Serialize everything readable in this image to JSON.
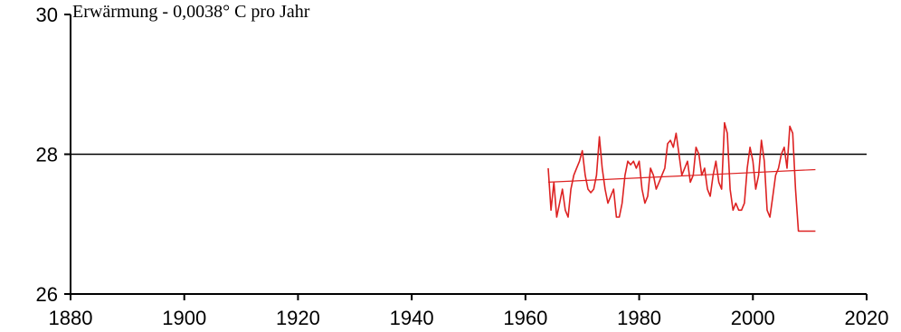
{
  "chart_data": {
    "type": "line",
    "title": "Erwärmung - 0,0038° C pro Jahr",
    "xlabel": "",
    "ylabel": "",
    "xlim": [
      1880,
      2020
    ],
    "ylim": [
      26,
      30
    ],
    "x_ticks": [
      1880,
      1900,
      1920,
      1940,
      1960,
      1980,
      2000,
      2020
    ],
    "y_ticks": [
      26,
      28,
      30
    ],
    "reference_line": {
      "y": 28,
      "color": "#000000"
    },
    "grid": false,
    "legend": "none",
    "series": [
      {
        "color": "#dd2222",
        "x": [
          1964.0,
          1964.5,
          1965.0,
          1965.5,
          1966.0,
          1966.5,
          1967.0,
          1967.5,
          1968.0,
          1968.5,
          1969.0,
          1969.5,
          1970.0,
          1970.5,
          1971.0,
          1971.5,
          1972.0,
          1972.5,
          1973.0,
          1973.5,
          1974.0,
          1974.5,
          1975.0,
          1975.5,
          1976.0,
          1976.5,
          1977.0,
          1977.5,
          1978.0,
          1978.5,
          1979.0,
          1979.5,
          1980.0,
          1980.5,
          1981.0,
          1981.5,
          1982.0,
          1982.5,
          1983.0,
          1983.5,
          1984.0,
          1984.5,
          1985.0,
          1985.5,
          1986.0,
          1986.5,
          1987.0,
          1987.5,
          1988.0,
          1988.5,
          1989.0,
          1989.5,
          1990.0,
          1990.5,
          1991.0,
          1991.5,
          1992.0,
          1992.5,
          1993.0,
          1993.5,
          1994.0,
          1994.5,
          1995.0,
          1995.5,
          1996.0,
          1996.5,
          1997.0,
          1997.5,
          1998.0,
          1998.5,
          1999.0,
          1999.5,
          2000.0,
          2000.5,
          2001.0,
          2001.5,
          2002.0,
          2002.5,
          2003.0,
          2003.5,
          2004.0,
          2004.5,
          2005.0,
          2005.5,
          2006.0,
          2006.5,
          2007.0,
          2007.5,
          2008.0,
          2008.5,
          2009.0,
          2009.5,
          2010.0,
          2010.5,
          2011.0
        ],
        "y": [
          27.8,
          27.2,
          27.6,
          27.1,
          27.3,
          27.5,
          27.2,
          27.1,
          27.5,
          27.7,
          27.8,
          27.9,
          28.05,
          27.7,
          27.5,
          27.45,
          27.5,
          27.7,
          28.25,
          27.8,
          27.5,
          27.3,
          27.4,
          27.5,
          27.1,
          27.1,
          27.3,
          27.7,
          27.9,
          27.85,
          27.9,
          27.8,
          27.9,
          27.5,
          27.3,
          27.4,
          27.8,
          27.7,
          27.5,
          27.6,
          27.7,
          27.8,
          28.15,
          28.2,
          28.1,
          28.3,
          28.0,
          27.7,
          27.8,
          27.9,
          27.6,
          27.7,
          28.1,
          28.0,
          27.7,
          27.8,
          27.5,
          27.4,
          27.7,
          27.9,
          27.6,
          27.5,
          28.45,
          28.3,
          27.5,
          27.2,
          27.3,
          27.2,
          27.2,
          27.3,
          27.8,
          28.1,
          27.9,
          27.5,
          27.7,
          28.2,
          27.9,
          27.2,
          27.1,
          27.4,
          27.7,
          27.8,
          28.0,
          28.1,
          27.8,
          28.4,
          28.3,
          27.5,
          26.9,
          26.9,
          26.9,
          26.9,
          26.9,
          26.9,
          26.9
        ]
      },
      {
        "color": "#dd2222",
        "x": [
          1964,
          2011
        ],
        "y": [
          27.6,
          27.78
        ]
      }
    ]
  }
}
